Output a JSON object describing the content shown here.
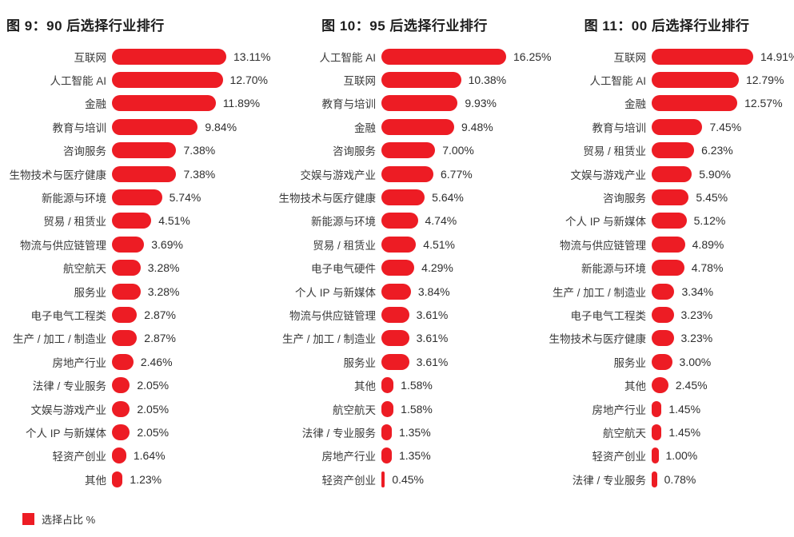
{
  "accent_color": "#ED1C24",
  "legend": {
    "label": "选择占比 %"
  },
  "chart_data": [
    {
      "type": "bar",
      "orientation": "horizontal",
      "title": "图 9：90 后选择行业排行",
      "value_unit": "%",
      "xlim": [
        0,
        16.25
      ],
      "grid": false,
      "legend_position": "bottom-left",
      "categories": [
        "互联网",
        "人工智能 AI",
        "金融",
        "教育与培训",
        "咨询服务",
        "生物技术与医疗健康",
        "新能源与环境",
        "贸易 / 租赁业",
        "物流与供应链管理",
        "航空航天",
        "服务业",
        "电子电气工程类",
        "生产 / 加工 / 制造业",
        "房地产行业",
        "法律 / 专业服务",
        "文娱与游戏产业",
        "个人 IP 与新媒体",
        "轻资产创业",
        "其他"
      ],
      "values": [
        13.11,
        12.7,
        11.89,
        9.84,
        7.38,
        7.38,
        5.74,
        4.51,
        3.69,
        3.28,
        3.28,
        2.87,
        2.87,
        2.46,
        2.05,
        2.05,
        2.05,
        1.64,
        1.23
      ]
    },
    {
      "type": "bar",
      "orientation": "horizontal",
      "title": "图 10：95 后选择行业排行",
      "value_unit": "%",
      "xlim": [
        0,
        16.25
      ],
      "grid": false,
      "legend_position": "bottom-left",
      "categories": [
        "人工智能 AI",
        "互联网",
        "教育与培训",
        "金融",
        "咨询服务",
        "交娱与游戏产业",
        "生物技术与医疗健康",
        "新能源与环境",
        "贸易 / 租赁业",
        "电子电气硬件",
        "个人 IP 与新媒体",
        "物流与供应链管理",
        "生产 / 加工 / 制造业",
        "服务业",
        "其他",
        "航空航天",
        "法律 / 专业服务",
        "房地产行业",
        "轻资产创业"
      ],
      "values": [
        16.25,
        10.38,
        9.93,
        9.48,
        7.0,
        6.77,
        5.64,
        4.74,
        4.51,
        4.29,
        3.84,
        3.61,
        3.61,
        3.61,
        1.58,
        1.58,
        1.35,
        1.35,
        0.45
      ]
    },
    {
      "type": "bar",
      "orientation": "horizontal",
      "title": "图 11：00 后选择行业排行",
      "value_unit": "%",
      "xlim": [
        0,
        16.25
      ],
      "grid": false,
      "legend_position": "bottom-left",
      "categories": [
        "互联网",
        "人工智能 AI",
        "金融",
        "教育与培训",
        "贸易 / 租赁业",
        "文娱与游戏产业",
        "咨询服务",
        "个人 IP 与新媒体",
        "物流与供应链管理",
        "新能源与环境",
        "生产 / 加工 / 制造业",
        "电子电气工程类",
        "生物技术与医疗健康",
        "服务业",
        "其他",
        "房地产行业",
        "航空航天",
        "轻资产创业",
        "法律 / 专业服务"
      ],
      "values": [
        14.91,
        12.79,
        12.57,
        7.45,
        6.23,
        5.9,
        5.45,
        5.12,
        4.89,
        4.78,
        3.34,
        3.23,
        3.23,
        3.0,
        2.45,
        1.45,
        1.45,
        1.0,
        0.78
      ]
    }
  ]
}
